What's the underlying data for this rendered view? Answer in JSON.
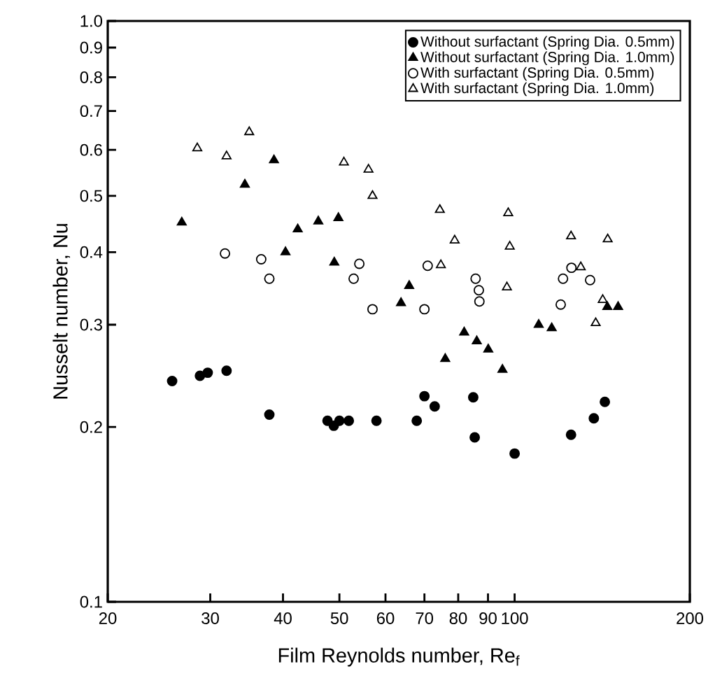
{
  "chart_data": {
    "type": "scatter",
    "xlabel": "Film Reynolds number, Re$_{f}$",
    "ylabel": "Nusselt number, Nu",
    "log": "xy",
    "xlim": [
      20,
      200
    ],
    "ylim": [
      0.1,
      1.0
    ],
    "xticks": [
      20,
      30,
      40,
      50,
      60,
      70,
      80,
      90,
      100,
      200
    ],
    "yticks": [
      0.1,
      0.2,
      0.3,
      0.4,
      0.5,
      0.6,
      0.7,
      0.8,
      0.9,
      {
        "value": 1.0,
        "label": "1.0"
      }
    ],
    "grid": false,
    "legend": "top right",
    "series": [
      {
        "name": "Without surfactant (Spring Dia. 0.5mm)",
        "color": "#000000",
        "marker": "circle",
        "x": [
          25.8,
          28.8,
          29.7,
          32.0,
          37.9,
          47.7,
          48.9,
          50.0,
          51.9,
          57.9,
          67.9,
          70.0,
          72.9,
          84.9,
          85.4,
          100,
          125,
          136.8,
          142.9
        ],
        "values": [
          0.24,
          0.245,
          0.248,
          0.25,
          0.21,
          0.205,
          0.201,
          0.205,
          0.205,
          0.205,
          0.205,
          0.226,
          0.217,
          0.225,
          0.192,
          0.18,
          0.194,
          0.207,
          0.221
        ]
      },
      {
        "name": "Without surfactant (Spring Dia. 1.0mm)",
        "color": "#000000",
        "marker": "triangle",
        "x": [
          26.8,
          34.4,
          38.6,
          40.4,
          42.4,
          46.0,
          49.0,
          49.8,
          63.8,
          65.9,
          76.0,
          81.9,
          86.1,
          90.1,
          95.3,
          110,
          115.8,
          144.3,
          150.6
        ],
        "values": [
          0.45,
          0.523,
          0.576,
          0.4,
          0.438,
          0.452,
          0.384,
          0.458,
          0.327,
          0.35,
          0.262,
          0.291,
          0.281,
          0.272,
          0.251,
          0.3,
          0.296,
          0.322,
          0.322
        ]
      },
      {
        "name": "With surfactant (Spring Dia. 0.5mm)",
        "color": "#ffffff",
        "marker": "circle",
        "x": [
          31.8,
          36.7,
          37.9,
          52.9,
          54.1,
          57.0,
          70.0,
          70.9,
          85.7,
          86.8,
          87.0,
          120.0,
          121.1,
          125.2,
          134.8
        ],
        "values": [
          0.398,
          0.389,
          0.36,
          0.36,
          0.382,
          0.319,
          0.319,
          0.379,
          0.36,
          0.344,
          0.329,
          0.325,
          0.36,
          0.376,
          0.358
        ]
      },
      {
        "name": "With surfactant (Spring Dia. 1.0mm)",
        "color": "#ffffff",
        "marker": "triangle",
        "x": [
          28.5,
          32.0,
          35.0,
          50.9,
          56.1,
          57.0,
          74.4,
          74.7,
          78.9,
          97.0,
          97.5,
          98.1,
          125,
          129.9,
          137.8,
          141.7,
          144.5
        ],
        "values": [
          0.604,
          0.585,
          0.644,
          0.571,
          0.555,
          0.5,
          0.473,
          0.38,
          0.419,
          0.348,
          0.467,
          0.409,
          0.426,
          0.377,
          0.302,
          0.331,
          0.421
        ]
      }
    ]
  }
}
